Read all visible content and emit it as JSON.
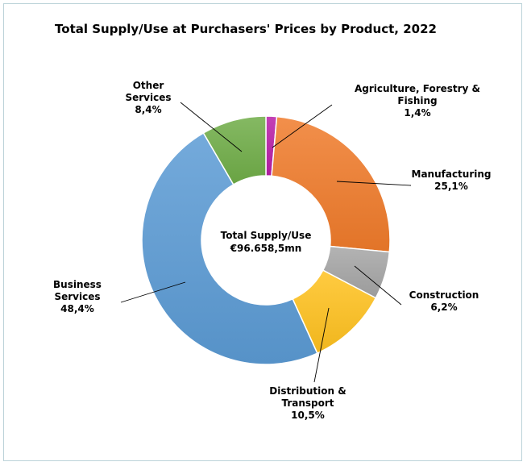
{
  "chart_data": {
    "type": "pie",
    "variant": "donut",
    "title": "Total Supply/Use at Purchasers' Prices by Product, 2022",
    "center_label": {
      "line1": "Total Supply/Use",
      "line2": "€96.658,5mn"
    },
    "slices": [
      {
        "name": "Agriculture, Forestry & Fishing",
        "value": 1.4,
        "value_label": "1,4%",
        "label_lines": [
          "Agriculture, Forestry &",
          "Fishing",
          "1,4%"
        ],
        "color": "#b81fa8"
      },
      {
        "name": "Manufacturing",
        "value": 25.1,
        "value_label": "25,1%",
        "label_lines": [
          "Manufacturing",
          "25,1%"
        ],
        "color": "#f07b2b"
      },
      {
        "name": "Construction",
        "value": 6.2,
        "value_label": "6,2%",
        "label_lines": [
          "Construction",
          "6,2%"
        ],
        "color": "#a5a5a5"
      },
      {
        "name": "Distribution & Transport",
        "value": 10.5,
        "value_label": "10,5%",
        "label_lines": [
          "Distribution &",
          "Transport",
          "10,5%"
        ],
        "color": "#ffc21f"
      },
      {
        "name": "Business Services",
        "value": 48.4,
        "value_label": "48,4%",
        "label_lines": [
          "Business",
          "Services",
          "48,4%"
        ],
        "color": "#5b9bd5"
      },
      {
        "name": "Other Services",
        "value": 8.4,
        "value_label": "8,4%",
        "label_lines": [
          "Other",
          "Services",
          "8,4%"
        ],
        "color": "#70ad47"
      }
    ]
  }
}
